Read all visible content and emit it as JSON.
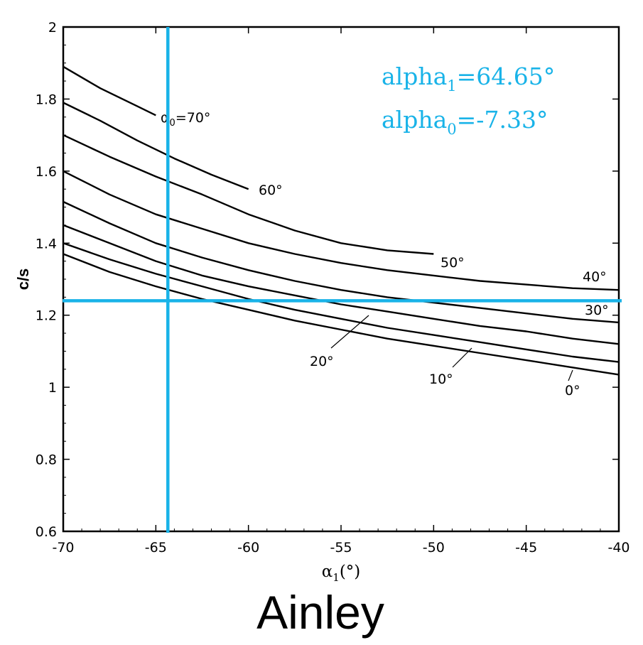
{
  "chart_data": {
    "type": "line",
    "title": "",
    "caption": "Ainley",
    "xlabel": "α",
    "xlabel_sub": "1",
    "xlabel_suffix": "(°)",
    "ylabel": "c/s",
    "xlim": [
      -70,
      -40
    ],
    "ylim": [
      0.6,
      2
    ],
    "xticks": [
      -70,
      -65,
      -60,
      -55,
      -50,
      -45,
      -40
    ],
    "xtick_labels": [
      "-70",
      "-65",
      "-60",
      "-55",
      "-50",
      "-45",
      "-40"
    ],
    "yticks": [
      0.6,
      0.8,
      1,
      1.2,
      1.4,
      1.6,
      1.8,
      2
    ],
    "ytick_labels": [
      "0.6",
      "0.8",
      "1",
      "1.2",
      "1.4",
      "1.6",
      "1.8",
      "2"
    ],
    "grid": false,
    "series": [
      {
        "name": "70°",
        "label": "α",
        "label_sub": "0",
        "label_rest": "=70°",
        "x": [
          -70,
          -68,
          -66,
          -65
        ],
        "y": [
          1.89,
          1.83,
          1.78,
          1.755
        ]
      },
      {
        "name": "60°",
        "label": "60°",
        "x": [
          -70,
          -68,
          -66,
          -64,
          -62,
          -60
        ],
        "y": [
          1.79,
          1.74,
          1.685,
          1.635,
          1.59,
          1.55
        ]
      },
      {
        "name": "50°",
        "label": "50°",
        "x": [
          -70,
          -67.5,
          -65,
          -62.5,
          -60,
          -57.5,
          -55,
          -52.5,
          -50
        ],
        "y": [
          1.7,
          1.64,
          1.585,
          1.535,
          1.48,
          1.435,
          1.4,
          1.38,
          1.37
        ]
      },
      {
        "name": "40°",
        "label": "40°",
        "x": [
          -70,
          -67.5,
          -65,
          -62.5,
          -60,
          -57.5,
          -55,
          -52.5,
          -50,
          -47.5,
          -45,
          -42.5,
          -40
        ],
        "y": [
          1.6,
          1.535,
          1.48,
          1.44,
          1.4,
          1.37,
          1.345,
          1.325,
          1.31,
          1.295,
          1.285,
          1.275,
          1.27
        ]
      },
      {
        "name": "30°",
        "label": "30°",
        "x": [
          -70,
          -67.5,
          -65,
          -62.5,
          -60,
          -57.5,
          -55,
          -52.5,
          -50,
          -47.5,
          -45,
          -42.5,
          -40
        ],
        "y": [
          1.515,
          1.455,
          1.4,
          1.36,
          1.325,
          1.295,
          1.27,
          1.25,
          1.235,
          1.22,
          1.205,
          1.19,
          1.18
        ]
      },
      {
        "name": "20°",
        "label": "20°",
        "x": [
          -70,
          -67.5,
          -65,
          -62.5,
          -60,
          -57.5,
          -55,
          -52.5,
          -50,
          -47.5,
          -45,
          -42.5,
          -40
        ],
        "y": [
          1.45,
          1.4,
          1.35,
          1.31,
          1.28,
          1.255,
          1.23,
          1.21,
          1.19,
          1.17,
          1.155,
          1.135,
          1.12
        ]
      },
      {
        "name": "10°",
        "label": "10°",
        "x": [
          -70,
          -67.5,
          -65,
          -62.5,
          -60,
          -57.5,
          -55,
          -52.5,
          -50,
          -47.5,
          -45,
          -42.5,
          -40
        ],
        "y": [
          1.4,
          1.355,
          1.315,
          1.28,
          1.245,
          1.215,
          1.19,
          1.165,
          1.145,
          1.125,
          1.105,
          1.085,
          1.07
        ]
      },
      {
        "name": "0°",
        "label": "0°",
        "x": [
          -70,
          -67.5,
          -65,
          -62.5,
          -60,
          -57.5,
          -55,
          -52.5,
          -50,
          -47.5,
          -45,
          -42.5,
          -40
        ],
        "y": [
          1.37,
          1.32,
          1.28,
          1.245,
          1.215,
          1.185,
          1.16,
          1.135,
          1.115,
          1.095,
          1.075,
          1.055,
          1.035
        ]
      }
    ],
    "reference_lines": {
      "color": "#19b3e8",
      "vertical_x": -64.35,
      "horizontal_y": 1.24
    },
    "annotations": {
      "color": "#19b3e8",
      "alpha1_prefix": "alpha",
      "alpha1_sub": "1",
      "alpha1_value": "=64.65°",
      "alpha0_prefix": "alpha",
      "alpha0_sub": "0",
      "alpha0_value": "=-7.33°"
    }
  }
}
